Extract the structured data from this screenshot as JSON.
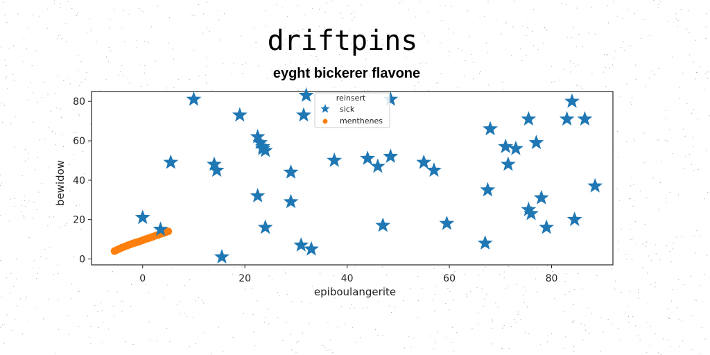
{
  "chart_data": {
    "type": "scatter",
    "title": "driftpins",
    "subtitle": "eyght bickerer flavone",
    "xlabel": "epiboulangerite",
    "ylabel": "bewidow",
    "xlim": [
      -10,
      92
    ],
    "ylim": [
      -3,
      85
    ],
    "xticks": [
      0,
      20,
      40,
      60,
      80
    ],
    "yticks": [
      0,
      20,
      40,
      60,
      80
    ],
    "grid": false,
    "legend": {
      "title": "reinsert",
      "placement": "top-center"
    },
    "colors": {
      "sick": "#1f77b4",
      "menthenes": "#ff7f0e"
    },
    "series": [
      {
        "name": "sick",
        "marker": "star",
        "x": [
          10,
          19,
          22.5,
          23,
          23.5,
          24,
          23.5,
          14,
          14.5,
          5.5,
          0,
          3.5,
          15.5,
          22.5,
          24,
          29,
          29,
          31,
          33,
          31.5,
          32,
          37.5,
          44,
          46,
          47,
          48.5,
          48.5,
          55,
          57,
          59.5,
          67,
          67.5,
          68,
          71,
          71.5,
          73,
          75.5,
          75.5,
          76,
          77,
          78,
          79,
          83,
          84,
          84.5,
          86.5,
          88.5
        ],
        "y": [
          81,
          73,
          62,
          59,
          57,
          55,
          56,
          48,
          45,
          49,
          21,
          15,
          1,
          32,
          16,
          44,
          29,
          7,
          5,
          73,
          83,
          50,
          51,
          47,
          17,
          52,
          81,
          49,
          45,
          18,
          8,
          35,
          66,
          57,
          48,
          56,
          71,
          25,
          23,
          59,
          31,
          16,
          71,
          80,
          20,
          71,
          37
        ]
      },
      {
        "name": "menthenes",
        "marker": "dot",
        "x": [
          -5.5,
          -5,
          -4.5,
          -4,
          -3.5,
          -3,
          -2.5,
          -2,
          -1.5,
          -1,
          -0.5,
          0,
          0.5,
          1,
          1.5,
          2,
          2.5,
          3,
          3.5,
          4,
          4.5,
          5
        ],
        "y": [
          4,
          4.6,
          5.2,
          5.8,
          6.3,
          6.8,
          7.3,
          7.8,
          8.2,
          8.6,
          9,
          9.5,
          10,
          10.4,
          10.8,
          11.3,
          11.8,
          12.2,
          12.7,
          13.1,
          13.5,
          14
        ]
      }
    ]
  }
}
